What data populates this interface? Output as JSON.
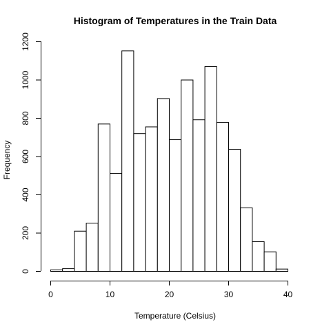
{
  "chart_data": {
    "type": "bar",
    "title": "Histogram of Temperatures in the Train Data",
    "xlabel": "Temperature (Celsius)",
    "ylabel": "Frequency",
    "bin_edges": [
      0,
      2,
      4,
      6,
      8,
      10,
      12,
      14,
      16,
      18,
      20,
      22,
      24,
      26,
      28,
      30,
      32,
      34,
      36,
      38,
      40,
      42
    ],
    "values": [
      8,
      14,
      210,
      252,
      770,
      512,
      1152,
      720,
      755,
      903,
      688,
      1000,
      792,
      1070,
      778,
      638,
      332,
      155,
      102,
      12,
      0
    ],
    "xlim": [
      0,
      42
    ],
    "ylim": [
      0,
      1200
    ],
    "x_ticks": [
      "0",
      "10",
      "20",
      "30",
      "40"
    ],
    "y_ticks": [
      "0",
      "200",
      "400",
      "600",
      "800",
      "1000",
      "1200"
    ],
    "grid": false
  }
}
